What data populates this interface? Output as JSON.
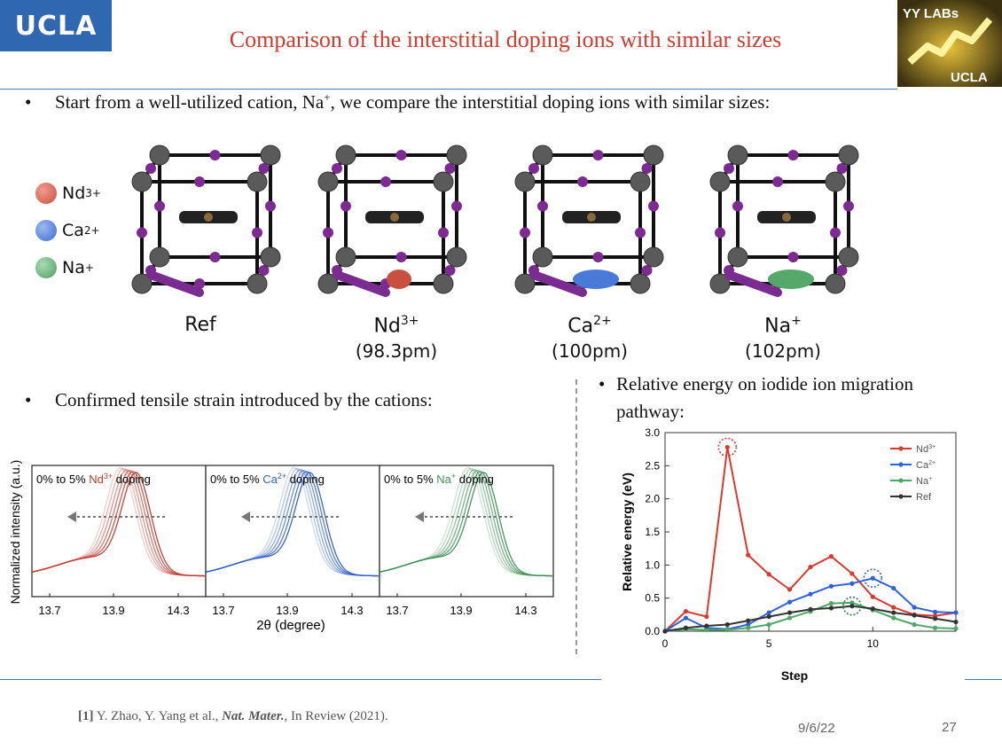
{
  "header": {
    "logo_text": "UCLA",
    "title": "Comparison of the interstitial doping ions with similar sizes",
    "yy_top": "YY LABs",
    "yy_bottom": "UCLA"
  },
  "bullets": {
    "b1_prefix": "Start from a well-utilized cation, Na",
    "b1_sup": "+",
    "b1_suffix": ", we compare the interstitial doping ions with similar sizes:",
    "b2": "Confirmed tensile strain introduced by the cations:",
    "b3_line1": "Relative energy on iodide ion migration",
    "b3_line2": "pathway:"
  },
  "legend": [
    {
      "label": "Nd",
      "sup": "3+",
      "color": "#d4574a"
    },
    {
      "label": "Ca",
      "sup": "2+",
      "color": "#4a7ad8"
    },
    {
      "label": "Na",
      "sup": "+",
      "color": "#56a86a"
    }
  ],
  "structures": [
    {
      "label": "Ref",
      "sup": "",
      "size": ""
    },
    {
      "label": "Nd",
      "sup": "3+",
      "size": "(98.3pm)",
      "ion_color": "#c9503e"
    },
    {
      "label": "Ca",
      "sup": "2+",
      "size": "(100pm)",
      "ion_color": "#4a7ad8"
    },
    {
      "label": "Na",
      "sup": "+",
      "size": "(102pm)",
      "ion_color": "#56a86a"
    }
  ],
  "chart_data": [
    {
      "type": "line",
      "ylabel": "Normalized intensity (a.u.)",
      "xlabel": "2θ (degree)",
      "panels": [
        {
          "label_pre": "0% to 5% ",
          "ion": "Nd",
          "sup": "3+",
          "label_post": " doping",
          "color": "#c0392b",
          "xticks": [
            "13.7",
            "13.9",
            "14.3"
          ]
        },
        {
          "label_pre": "0% to 5% ",
          "ion": "Ca",
          "sup": "2+",
          "label_post": " doping",
          "color": "#2f5fc8",
          "xticks": [
            "13.7",
            "13.9",
            "14.3"
          ]
        },
        {
          "label_pre": "0% to 5% ",
          "ion": "Na",
          "sup": "+",
          "label_post": " doping",
          "color": "#3d8f55",
          "xticks": [
            "13.7",
            "13.9",
            "14.3"
          ]
        }
      ]
    },
    {
      "type": "line",
      "xlabel": "Step",
      "ylabel": "Relative energy (eV)",
      "xlim": [
        0,
        14
      ],
      "ylim": [
        0,
        3.0
      ],
      "xticks": [
        0,
        5,
        10
      ],
      "yticks": [
        "0.0",
        "0.5",
        "1.0",
        "1.5",
        "2.0",
        "2.5",
        "3.0"
      ],
      "legend_position": "top-right",
      "series": [
        {
          "name": "Nd",
          "sup": "3+",
          "color": "#d93a2e",
          "x": [
            0,
            1,
            2,
            3,
            4,
            5,
            6,
            7,
            8,
            9,
            10,
            11,
            12,
            13,
            14
          ],
          "values": [
            0.0,
            0.3,
            0.22,
            2.78,
            1.15,
            0.86,
            0.63,
            0.97,
            1.13,
            0.87,
            0.52,
            0.36,
            0.25,
            0.23,
            0.28
          ]
        },
        {
          "name": "Ca",
          "sup": "2+",
          "color": "#2f62d8",
          "x": [
            0,
            1,
            2,
            3,
            4,
            5,
            6,
            7,
            8,
            9,
            10,
            11,
            12,
            13,
            14
          ],
          "values": [
            0.0,
            0.2,
            0.05,
            0.03,
            0.1,
            0.28,
            0.44,
            0.56,
            0.68,
            0.72,
            0.8,
            0.65,
            0.36,
            0.29,
            0.28
          ]
        },
        {
          "name": "Na",
          "sup": "+",
          "color": "#4da865",
          "x": [
            0,
            1,
            2,
            3,
            4,
            5,
            6,
            7,
            8,
            9,
            10,
            11,
            12,
            13,
            14
          ],
          "values": [
            0.0,
            0.03,
            0.02,
            0.02,
            0.05,
            0.1,
            0.2,
            0.3,
            0.42,
            0.43,
            0.32,
            0.2,
            0.1,
            0.05,
            0.04
          ]
        },
        {
          "name": "Ref",
          "sup": "",
          "color": "#333333",
          "x": [
            0,
            1,
            2,
            3,
            4,
            5,
            6,
            7,
            8,
            9,
            10,
            11,
            12,
            13,
            14
          ],
          "values": [
            0.0,
            0.05,
            0.08,
            0.1,
            0.16,
            0.22,
            0.28,
            0.33,
            0.35,
            0.38,
            0.34,
            0.28,
            0.24,
            0.19,
            0.14
          ]
        }
      ]
    }
  ],
  "footer": {
    "ref_num": "[1]",
    "ref_authors": " Y. Zhao, Y. Yang et al., ",
    "ref_journal": "Nat. Mater.",
    "ref_rest": ", In Review (2021).",
    "date": "9/6/22",
    "page": "27"
  }
}
